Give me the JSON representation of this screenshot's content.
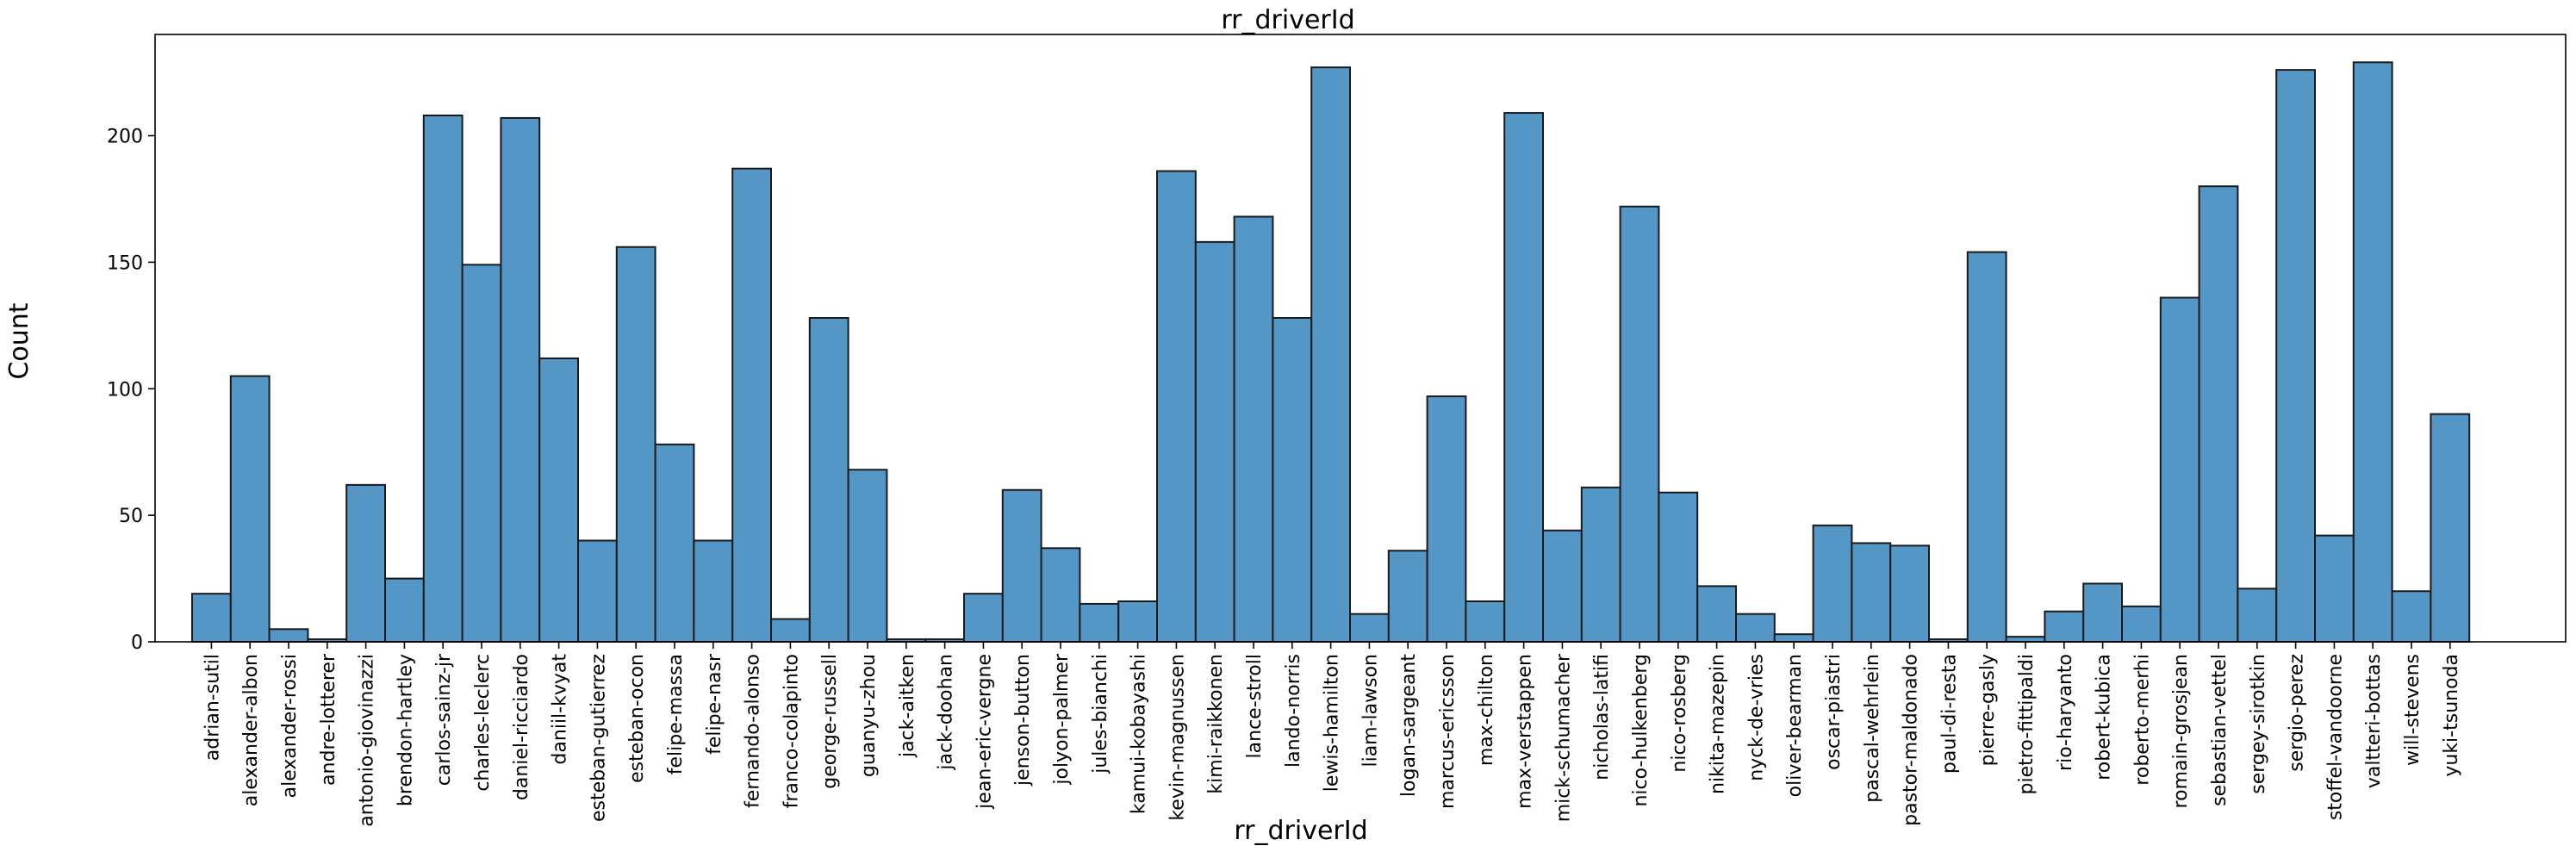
{
  "chart_data": {
    "type": "bar",
    "title": "rr_driverId",
    "xlabel": "rr_driverId",
    "ylabel": "Count",
    "ylim": [
      0,
      240
    ],
    "yticks": [
      0,
      50,
      100,
      150,
      200
    ],
    "grid": false,
    "bar_color": "#5497c6",
    "edge_color": "#1a1a1a",
    "categories": [
      "adrian-sutil",
      "alexander-albon",
      "alexander-rossi",
      "andre-lotterer",
      "antonio-giovinazzi",
      "brendon-hartley",
      "carlos-sainz-jr",
      "charles-leclerc",
      "daniel-ricciardo",
      "daniil-kvyat",
      "esteban-gutierrez",
      "esteban-ocon",
      "felipe-massa",
      "felipe-nasr",
      "fernando-alonso",
      "franco-colapinto",
      "george-russell",
      "guanyu-zhou",
      "jack-aitken",
      "jack-doohan",
      "jean-eric-vergne",
      "jenson-button",
      "jolyon-palmer",
      "jules-bianchi",
      "kamui-kobayashi",
      "kevin-magnussen",
      "kimi-raikkonen",
      "lance-stroll",
      "lando-norris",
      "lewis-hamilton",
      "liam-lawson",
      "logan-sargeant",
      "marcus-ericsson",
      "max-chilton",
      "max-verstappen",
      "mick-schumacher",
      "nicholas-latifi",
      "nico-hulkenberg",
      "nico-rosberg",
      "nikita-mazepin",
      "nyck-de-vries",
      "oliver-bearman",
      "oscar-piastri",
      "pascal-wehrlein",
      "pastor-maldonado",
      "paul-di-resta",
      "pierre-gasly",
      "pietro-fittipaldi",
      "rio-haryanto",
      "robert-kubica",
      "roberto-merhi",
      "romain-grosjean",
      "sebastian-vettel",
      "sergey-sirotkin",
      "sergio-perez",
      "stoffel-vandoorne",
      "valtteri-bottas",
      "will-stevens",
      "yuki-tsunoda"
    ],
    "values": [
      19,
      105,
      5,
      1,
      62,
      25,
      208,
      149,
      207,
      112,
      40,
      156,
      78,
      40,
      187,
      9,
      128,
      68,
      1,
      1,
      19,
      60,
      37,
      15,
      16,
      186,
      158,
      168,
      128,
      227,
      11,
      36,
      97,
      16,
      209,
      44,
      61,
      172,
      59,
      22,
      11,
      3,
      46,
      39,
      38,
      1,
      154,
      2,
      12,
      23,
      14,
      136,
      180,
      21,
      226,
      42,
      229,
      20,
      90
    ]
  }
}
